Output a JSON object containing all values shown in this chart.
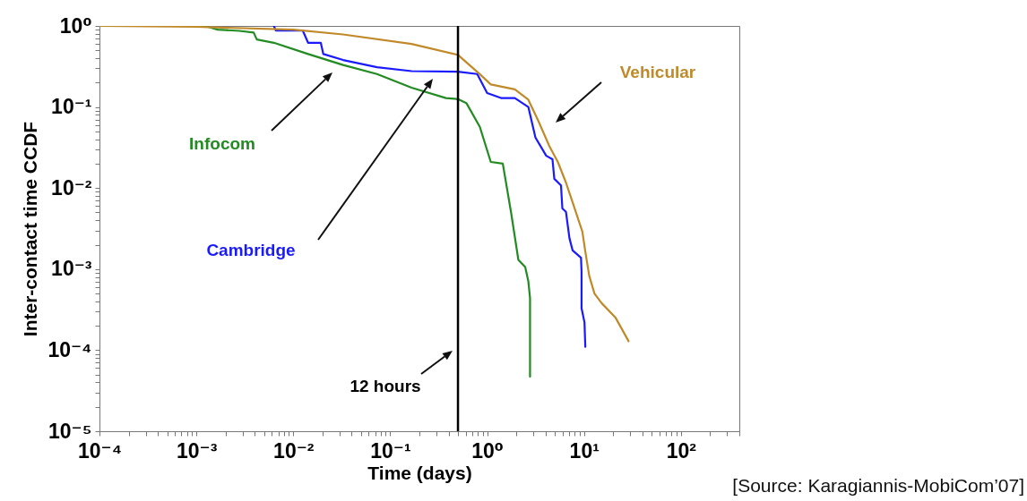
{
  "chart_data": {
    "type": "line",
    "xlabel": "Time (days)",
    "ylabel": "Inter-contact time CCDF",
    "log": "xy",
    "legend": false,
    "grid": false,
    "xlim": [
      0.0001,
      400
    ],
    "ylim": [
      1e-05,
      1
    ],
    "xticks": [
      {
        "value": 0.0001,
        "label": "10⁻⁴"
      },
      {
        "value": 0.0002,
        "label": null
      },
      {
        "value": 0.0003,
        "label": null
      },
      {
        "value": 0.0004,
        "label": null
      },
      {
        "value": 0.0005,
        "label": null
      },
      {
        "value": 0.0006,
        "label": null
      },
      {
        "value": 0.0007,
        "label": null
      },
      {
        "value": 0.0008,
        "label": null
      },
      {
        "value": 0.0009,
        "label": null
      },
      {
        "value": 0.001,
        "label": "10⁻³"
      },
      {
        "value": 0.002,
        "label": null
      },
      {
        "value": 0.003,
        "label": null
      },
      {
        "value": 0.004,
        "label": null
      },
      {
        "value": 0.005,
        "label": null
      },
      {
        "value": 0.006,
        "label": null
      },
      {
        "value": 0.007,
        "label": null
      },
      {
        "value": 0.008,
        "label": null
      },
      {
        "value": 0.009,
        "label": null
      },
      {
        "value": 0.01,
        "label": "10⁻²"
      },
      {
        "value": 0.02,
        "label": null
      },
      {
        "value": 0.03,
        "label": null
      },
      {
        "value": 0.04,
        "label": null
      },
      {
        "value": 0.05,
        "label": null
      },
      {
        "value": 0.06,
        "label": null
      },
      {
        "value": 0.07,
        "label": null
      },
      {
        "value": 0.08,
        "label": null
      },
      {
        "value": 0.09,
        "label": null
      },
      {
        "value": 0.1,
        "label": "10⁻¹"
      },
      {
        "value": 0.2,
        "label": null
      },
      {
        "value": 0.3,
        "label": null
      },
      {
        "value": 0.4,
        "label": null
      },
      {
        "value": 0.5,
        "label": null
      },
      {
        "value": 0.6,
        "label": null
      },
      {
        "value": 0.7,
        "label": null
      },
      {
        "value": 0.8,
        "label": null
      },
      {
        "value": 0.9,
        "label": null
      },
      {
        "value": 1,
        "label": "10⁰"
      },
      {
        "value": 2,
        "label": null
      },
      {
        "value": 3,
        "label": null
      },
      {
        "value": 4,
        "label": null
      },
      {
        "value": 5,
        "label": null
      },
      {
        "value": 6,
        "label": null
      },
      {
        "value": 7,
        "label": null
      },
      {
        "value": 8,
        "label": null
      },
      {
        "value": 9,
        "label": null
      },
      {
        "value": 10,
        "label": "10¹"
      },
      {
        "value": 20,
        "label": null
      },
      {
        "value": 30,
        "label": null
      },
      {
        "value": 40,
        "label": null
      },
      {
        "value": 50,
        "label": null
      },
      {
        "value": 60,
        "label": null
      },
      {
        "value": 70,
        "label": null
      },
      {
        "value": 80,
        "label": null
      },
      {
        "value": 90,
        "label": null
      },
      {
        "value": 100,
        "label": "10²"
      },
      {
        "value": 200,
        "label": null
      },
      {
        "value": 300,
        "label": null
      },
      {
        "value": 400,
        "label": null
      }
    ],
    "yticks": [
      {
        "value": 1e-05,
        "label": "10⁻⁵"
      },
      {
        "value": 2e-05,
        "label": null
      },
      {
        "value": 3e-05,
        "label": null
      },
      {
        "value": 4e-05,
        "label": null
      },
      {
        "value": 5e-05,
        "label": null
      },
      {
        "value": 6e-05,
        "label": null
      },
      {
        "value": 7e-05,
        "label": null
      },
      {
        "value": 8e-05,
        "label": null
      },
      {
        "value": 9e-05,
        "label": null
      },
      {
        "value": 0.0001,
        "label": "10⁻⁴"
      },
      {
        "value": 0.0002,
        "label": null
      },
      {
        "value": 0.0003,
        "label": null
      },
      {
        "value": 0.0004,
        "label": null
      },
      {
        "value": 0.0005,
        "label": null
      },
      {
        "value": 0.0006,
        "label": null
      },
      {
        "value": 0.0007,
        "label": null
      },
      {
        "value": 0.0008,
        "label": null
      },
      {
        "value": 0.0009,
        "label": null
      },
      {
        "value": 0.001,
        "label": "10⁻³"
      },
      {
        "value": 0.002,
        "label": null
      },
      {
        "value": 0.003,
        "label": null
      },
      {
        "value": 0.004,
        "label": null
      },
      {
        "value": 0.005,
        "label": null
      },
      {
        "value": 0.006,
        "label": null
      },
      {
        "value": 0.007,
        "label": null
      },
      {
        "value": 0.008,
        "label": null
      },
      {
        "value": 0.009,
        "label": null
      },
      {
        "value": 0.01,
        "label": "10⁻²"
      },
      {
        "value": 0.02,
        "label": null
      },
      {
        "value": 0.03,
        "label": null
      },
      {
        "value": 0.04,
        "label": null
      },
      {
        "value": 0.05,
        "label": null
      },
      {
        "value": 0.06,
        "label": null
      },
      {
        "value": 0.07,
        "label": null
      },
      {
        "value": 0.08,
        "label": null
      },
      {
        "value": 0.09,
        "label": null
      },
      {
        "value": 0.1,
        "label": "10⁻¹"
      },
      {
        "value": 0.2,
        "label": null
      },
      {
        "value": 0.3,
        "label": null
      },
      {
        "value": 0.4,
        "label": null
      },
      {
        "value": 0.5,
        "label": null
      },
      {
        "value": 0.6,
        "label": null
      },
      {
        "value": 0.7,
        "label": null
      },
      {
        "value": 0.8,
        "label": null
      },
      {
        "value": 0.9,
        "label": null
      },
      {
        "value": 1,
        "label": "10⁰"
      }
    ],
    "series": [
      {
        "name": "Infocom",
        "color": "#228b22",
        "x": [
          0.0001,
          0.00123,
          0.00166,
          0.00277,
          0.0039,
          0.0042,
          0.0063,
          0.0142,
          0.0326,
          0.073,
          0.166,
          0.376,
          0.5,
          0.61,
          0.84,
          1.09,
          1.45,
          1.77,
          2.1,
          2.47,
          2.66,
          2.77,
          2.77,
          2.77
        ],
        "values": [
          1,
          1,
          0.9,
          0.87,
          0.83,
          0.68,
          0.62,
          0.45,
          0.33,
          0.255,
          0.173,
          0.129,
          0.125,
          0.112,
          0.057,
          0.021,
          0.02,
          0.0049,
          0.0013,
          0.00106,
          0.00071,
          0.00044,
          0.00022,
          4.7e-05
        ]
      },
      {
        "name": "Cambridge",
        "color": "#1a1aff",
        "x": [
          0.0063,
          0.0066,
          0.0125,
          0.0142,
          0.0192,
          0.0204,
          0.0326,
          0.073,
          0.166,
          0.5,
          0.79,
          1,
          1.39,
          1.93,
          2.66,
          3.15,
          4.07,
          4.72,
          4.93,
          5.78,
          5.97,
          6.5,
          7.07,
          7.62,
          9.3,
          9.42,
          9.42,
          10.1,
          10.3
        ],
        "values": [
          1,
          0.88,
          0.88,
          0.62,
          0.62,
          0.45,
          0.38,
          0.31,
          0.277,
          0.273,
          0.255,
          0.149,
          0.129,
          0.129,
          0.1,
          0.042,
          0.025,
          0.0227,
          0.013,
          0.0108,
          0.0056,
          0.0051,
          0.0024,
          0.0017,
          0.00138,
          0.00092,
          0.00033,
          0.00022,
          0.00011
        ]
      },
      {
        "name": "Vehicular",
        "color": "#c08a2a",
        "x": [
          0.0001,
          0.001,
          0.01,
          0.0326,
          0.166,
          0.5,
          0.84,
          1.09,
          1.93,
          2.66,
          3.36,
          4.38,
          5.36,
          6.5,
          7.6,
          9.6,
          10.3,
          11.3,
          12.8,
          15.2,
          21.2,
          28.8
        ],
        "values": [
          1,
          0.975,
          0.9,
          0.785,
          0.6,
          0.44,
          0.254,
          0.19,
          0.165,
          0.123,
          0.068,
          0.033,
          0.021,
          0.0117,
          0.0067,
          0.0029,
          0.00165,
          0.00083,
          0.0005,
          0.00038,
          0.00025,
          0.000129
        ]
      }
    ],
    "ref_lines": [
      {
        "axis": "x",
        "value": 0.5,
        "label": "12 hours",
        "color": "#000000"
      }
    ],
    "annotations": [
      "[Source: Karagiannis-MobiCom’07]"
    ]
  }
}
